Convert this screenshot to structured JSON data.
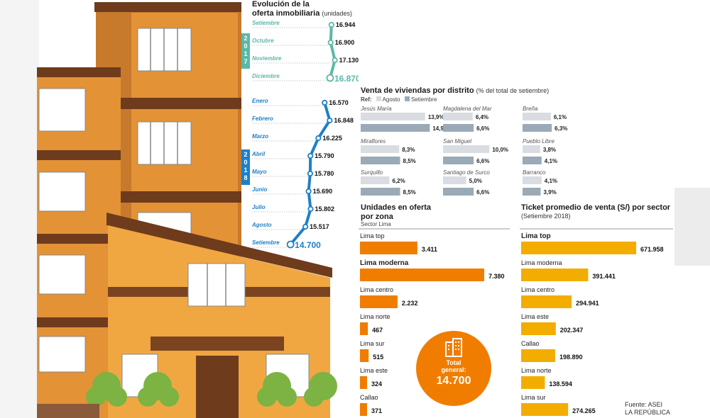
{
  "colors": {
    "sky": "#ffffff",
    "building_orange": "#e08a2a",
    "building_light": "#f0a742",
    "building_brown": "#7a4420",
    "teal": "#5cb8a6",
    "blue": "#1e80c8",
    "agosto": "#d9dde2",
    "setiembre": "#9aaab7",
    "orange_bar": "#f07d00",
    "yellow_bar": "#f2ad00",
    "circle": "#f07d00"
  },
  "chart_data": [
    {
      "type": "line",
      "title": "Evolución de la oferta inmobiliaria",
      "title_line1": "Evolución de la",
      "title_line2": "oferta inmobiliaria",
      "unit": "(unidades)",
      "groups": [
        {
          "year": "2017",
          "color": "#5cb8a6",
          "points": [
            {
              "month": "Setiembre",
              "value": 16944,
              "label": "16.944"
            },
            {
              "month": "Octubre",
              "value": 16900,
              "label": "16.900"
            },
            {
              "month": "Noviembre",
              "value": 17130,
              "label": "17.130"
            },
            {
              "month": "Diciembre",
              "value": 16870,
              "label": "16.870"
            }
          ]
        },
        {
          "year": "2018",
          "color": "#1e80c8",
          "points": [
            {
              "month": "Enero",
              "value": 16570,
              "label": "16.570"
            },
            {
              "month": "Febrero",
              "value": 16848,
              "label": "16.848"
            },
            {
              "month": "Marzo",
              "value": 16225,
              "label": "16.225"
            },
            {
              "month": "Abril",
              "value": 15790,
              "label": "15.790"
            },
            {
              "month": "Mayo",
              "value": 15780,
              "label": "15.780"
            },
            {
              "month": "Junio",
              "value": 15690,
              "label": "15.690"
            },
            {
              "month": "Julio",
              "value": 15802,
              "label": "15.802"
            },
            {
              "month": "Agosto",
              "value": 15517,
              "label": "15.517"
            },
            {
              "month": "Setiembre",
              "value": 14700,
              "label": "14.700"
            }
          ]
        }
      ]
    },
    {
      "type": "bar",
      "title": "Venta de viviendas por distrito",
      "subtitle": "(% del total de setiembre)",
      "ref_label": "Ref:",
      "series_names": [
        "Agosto",
        "Setiembre"
      ],
      "max": 15,
      "districts": [
        {
          "name": "Jesús María",
          "agosto": 13.9,
          "setiembre": 14.9,
          "agosto_label": "13,9%",
          "setiembre_label": "14,9%"
        },
        {
          "name": "Magdalena del Mar",
          "agosto": 6.4,
          "setiembre": 6.6,
          "agosto_label": "6,4%",
          "setiembre_label": "6,6%"
        },
        {
          "name": "Breña",
          "agosto": 6.1,
          "setiembre": 6.3,
          "agosto_label": "6,1%",
          "setiembre_label": "6,3%"
        },
        {
          "name": "Miraflores",
          "agosto": 8.3,
          "setiembre": 8.5,
          "agosto_label": "8,3%",
          "setiembre_label": "8,5%"
        },
        {
          "name": "San Miguel",
          "agosto": 10.0,
          "setiembre": 6.6,
          "agosto_label": "10,0%",
          "setiembre_label": "6,6%"
        },
        {
          "name": "Pueblo Libre",
          "agosto": 3.8,
          "setiembre": 4.1,
          "agosto_label": "3,8%",
          "setiembre_label": "4,1%"
        },
        {
          "name": "Surquillo",
          "agosto": 6.2,
          "setiembre": 8.5,
          "agosto_label": "6,2%",
          "setiembre_label": "8,5%"
        },
        {
          "name": "Santiago de Surco",
          "agosto": 5.0,
          "setiembre": 6.6,
          "agosto_label": "5,0%",
          "setiembre_label": "6,6%"
        },
        {
          "name": "Barranco",
          "agosto": 4.1,
          "setiembre": 3.9,
          "agosto_label": "4,1%",
          "setiembre_label": "3,9%"
        }
      ]
    },
    {
      "type": "bar",
      "title": "Unidades en oferta por zona",
      "title_line1": "Unidades en oferta",
      "title_line2": "por zona",
      "subtitle": "Sector Lima",
      "max": 7380,
      "categories": [
        "Lima top",
        "Lima moderna",
        "Lima centro",
        "Lima norte",
        "Lima sur",
        "Lima este",
        "Callao"
      ],
      "values": [
        3411,
        7380,
        2232,
        467,
        515,
        324,
        371
      ],
      "labels": [
        "3.411",
        "7.380",
        "2.232",
        "467",
        "515",
        "324",
        "371"
      ],
      "highlight": 1,
      "total_label": "Total general:",
      "total_line1": "Total",
      "total_line2": "general:",
      "total_value": "14.700"
    },
    {
      "type": "bar",
      "title": "Ticket promedio de venta (S/) por sector",
      "subtitle": "(Setiembre 2018)",
      "max": 671958,
      "categories": [
        "Lima top",
        "Lima moderna",
        "Lima centro",
        "Lima este",
        "Callao",
        "Lima norte",
        "Lima sur"
      ],
      "values": [
        671958,
        391441,
        294941,
        202347,
        198890,
        138594,
        274265
      ],
      "labels": [
        "671.958",
        "391.441",
        "294.941",
        "202.347",
        "198.890",
        "138.594",
        "274.265"
      ],
      "highlight": 0
    }
  ],
  "source": {
    "line1": "Fuente: ASEI",
    "line2": "LA REPÚBLICA"
  }
}
